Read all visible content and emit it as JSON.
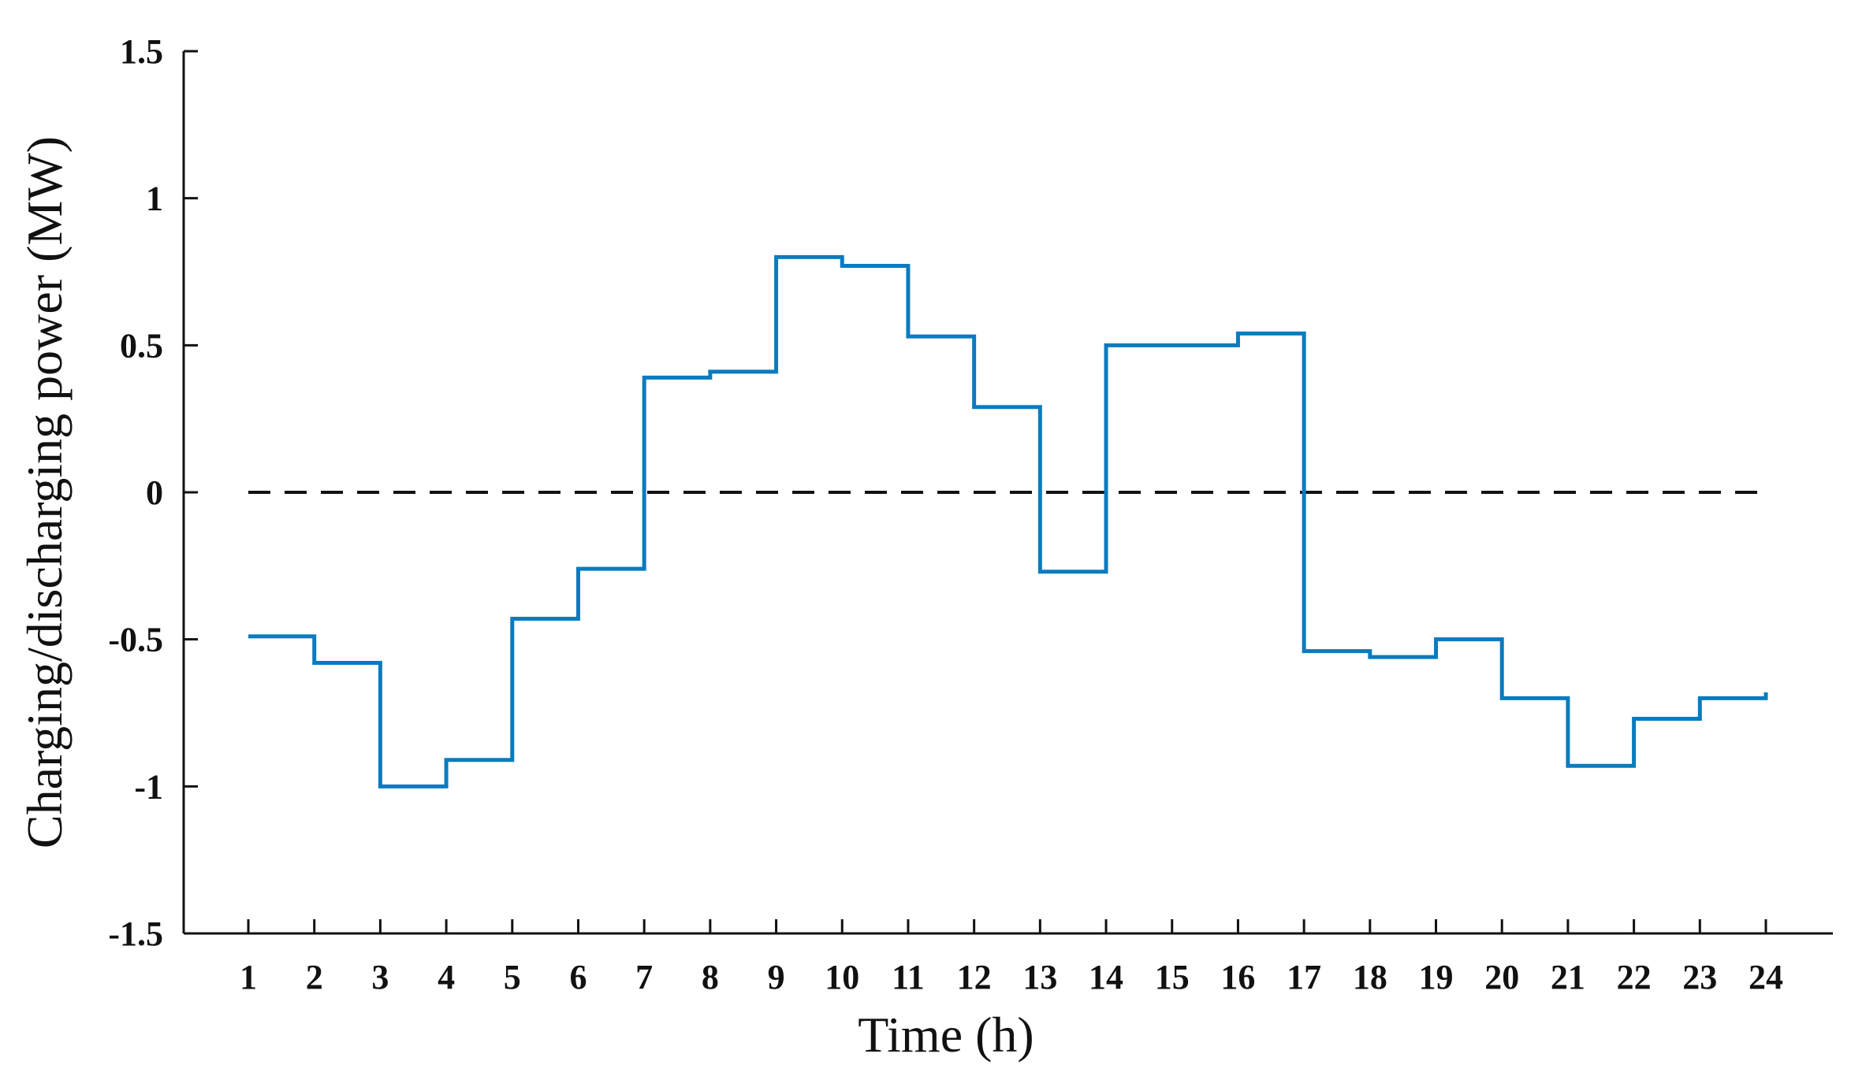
{
  "chart_data": {
    "type": "line",
    "step": "post",
    "title": "",
    "xlabel": "Time (h)",
    "ylabel": "Charging/discharging power (MW)",
    "xlim": [
      0,
      25
    ],
    "ylim": [
      -1.5,
      1.5
    ],
    "x_ticks": [
      1,
      2,
      3,
      4,
      5,
      6,
      7,
      8,
      9,
      10,
      11,
      12,
      13,
      14,
      15,
      16,
      17,
      18,
      19,
      20,
      21,
      22,
      23,
      24
    ],
    "x_tick_labels": [
      "1",
      "2",
      "3",
      "4",
      "5",
      "6",
      "7",
      "8",
      "9",
      "10",
      "11",
      "12",
      "13",
      "14",
      "15",
      "16",
      "17",
      "18",
      "19",
      "20",
      "21",
      "22",
      "23",
      "24"
    ],
    "y_ticks": [
      -1.5,
      -1,
      -0.5,
      0,
      0.5,
      1,
      1.5
    ],
    "y_tick_labels": [
      "-1.5",
      "-1",
      "-0.5",
      "0",
      "0.5",
      "1",
      "1.5"
    ],
    "grid": false,
    "series": [
      {
        "color": "#0a7bbf",
        "line_style": "solid",
        "x": [
          1,
          2,
          3,
          4,
          5,
          6,
          7,
          8,
          9,
          10,
          11,
          12,
          13,
          14,
          15,
          16,
          17,
          18,
          19,
          20,
          21,
          22,
          23
        ],
        "values": [
          -0.49,
          -0.58,
          -1.0,
          -0.91,
          -0.43,
          -0.26,
          0.39,
          0.41,
          0.8,
          0.77,
          0.53,
          0.29,
          -0.27,
          0.5,
          0.5,
          0.54,
          -0.54,
          -0.56,
          -0.5,
          -0.7,
          -0.93,
          -0.77,
          -0.7
        ],
        "end_x": 24,
        "end_value": -0.68
      }
    ],
    "reference_lines": [
      {
        "y": 0,
        "x_range": [
          1,
          24
        ],
        "color": "#111111",
        "line_style": "dashed"
      }
    ]
  }
}
